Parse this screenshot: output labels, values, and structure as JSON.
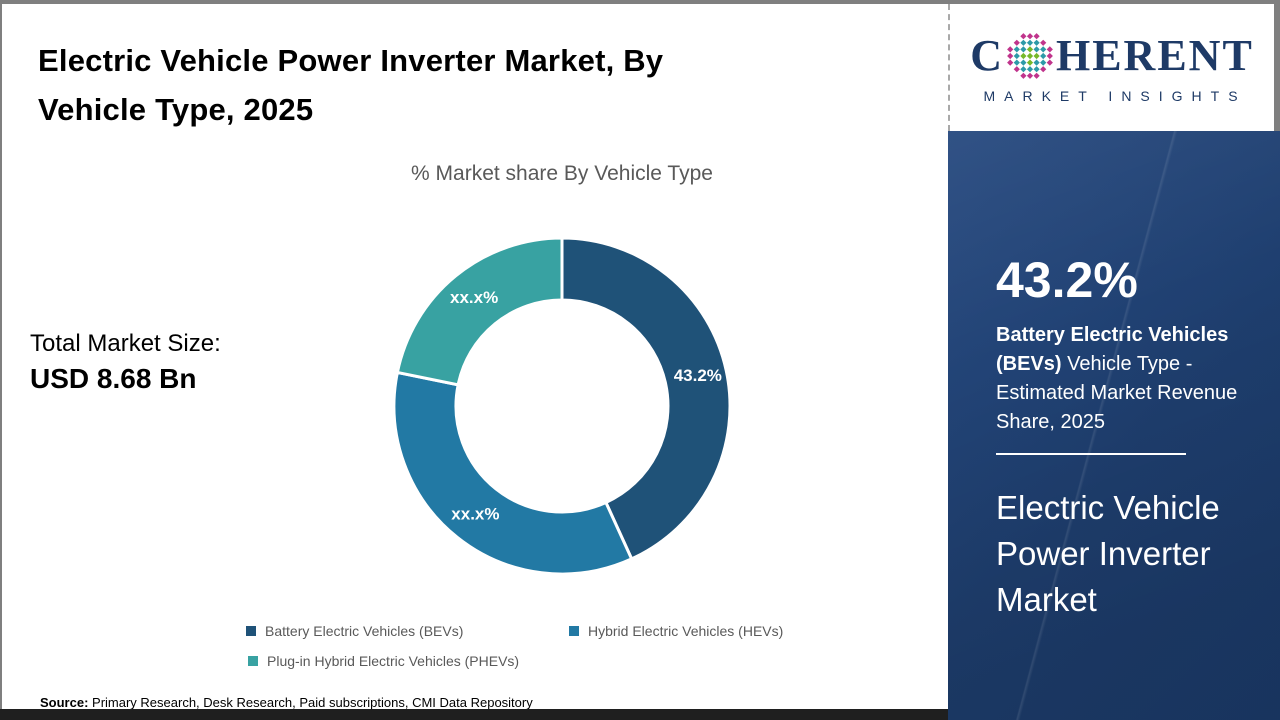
{
  "title": {
    "lines": [
      "Electric Vehicle Power Inverter Market, By",
      "Vehicle Type, 2025"
    ]
  },
  "chart_data": {
    "type": "pie",
    "donut": true,
    "title": "% Market share By Vehicle Type",
    "categories": [
      "Battery Electric Vehicles (BEVs)",
      "Hybrid Electric Vehicles (HEVs)",
      "Plug-in Hybrid Electric Vehicles (PHEVs)"
    ],
    "values": [
      43.2,
      35.0,
      21.8
    ],
    "slice_labels": [
      "43.2%",
      "xx.x%",
      "xx.x%"
    ],
    "colors": [
      "#1f5278",
      "#2279a4",
      "#38a2a2"
    ],
    "legend_position": "bottom",
    "label_color": "#ffffff"
  },
  "total_market": {
    "label": "Total Market Size:",
    "value": "USD 8.68 Bn"
  },
  "source": {
    "label": "Source:",
    "text": " Primary Research, Desk Research, Paid subscriptions, CMI Data Repository"
  },
  "logo": {
    "prefix": "C",
    "suffix": "HERENT",
    "tagline": "MARKET INSIGHTS",
    "globe_icon": "dotted-globe-icon",
    "navy": "#1e3a66",
    "globe_colors": {
      "inner": "#76b82a",
      "middle": "#2d9aa8",
      "outer": "#c0348c"
    }
  },
  "side_panel": {
    "stat_value": "43.2%",
    "stat_desc_bold": "Battery Electric Vehicles (BEVs)",
    "stat_desc_rest": " Vehicle Type - Estimated Market Revenue Share, 2025",
    "market_name_lines": [
      "Electric Vehicle",
      "Power Inverter",
      "Market"
    ],
    "bg_color": "#1e3e6e"
  },
  "ui_colors": {
    "text_gray": "#595959",
    "title_black": "#000000",
    "frame_gray": "#7f7f7f",
    "bottom_bar": "#1f1f1f"
  }
}
